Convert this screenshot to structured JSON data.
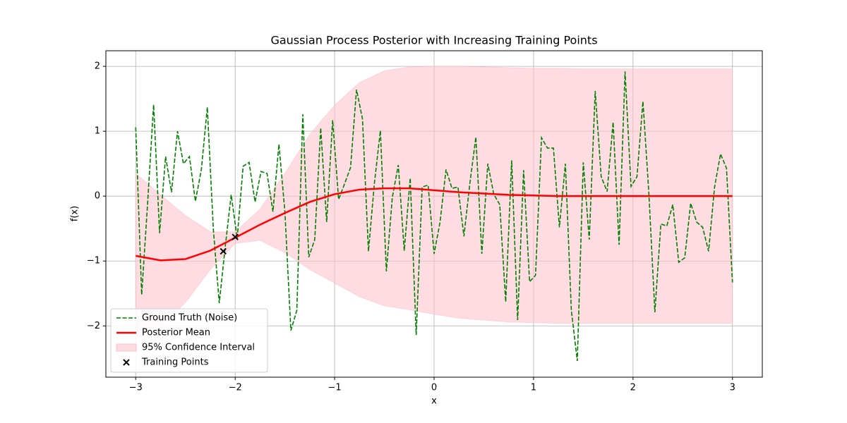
{
  "chart_data": {
    "type": "line",
    "title": "Gaussian Process Posterior with Increasing Training Points",
    "x_label": "x",
    "y_label": "f(x)",
    "xlim": [
      -3.3,
      3.3
    ],
    "ylim": [
      -2.79,
      2.24
    ],
    "xticks": [
      {
        "value": -3,
        "label": "−3"
      },
      {
        "value": -2,
        "label": "−2"
      },
      {
        "value": -1,
        "label": "−1"
      },
      0,
      1,
      2,
      3
    ],
    "yticks": [
      {
        "value": -2,
        "label": "−2"
      },
      {
        "value": -1,
        "label": "−1"
      },
      0,
      1,
      2
    ],
    "grid": true,
    "legend": "lower left",
    "series": [
      {
        "name": "95% Confidence Interval",
        "kind": "band",
        "color": "#ffc0cb",
        "x": [
          -3,
          -2.75,
          -2.5,
          -2.25,
          -2,
          -1.75,
          -1.5,
          -1.25,
          -1,
          -0.75,
          -0.5,
          -0.25,
          0,
          0.25,
          0.5,
          0.75,
          1,
          1.25,
          1.5,
          1.75,
          2,
          2.25,
          2.5,
          2.75,
          3
        ],
        "upper": [
          0.35,
          0.02,
          -0.3,
          -0.55,
          -0.55,
          -0.2,
          0.35,
          0.95,
          1.4,
          1.75,
          1.93,
          1.99,
          2.0,
          2.0,
          1.99,
          1.98,
          1.97,
          1.97,
          1.96,
          1.96,
          1.96,
          1.96,
          1.96,
          1.96,
          1.96
        ],
        "lower": [
          -2.19,
          -2.0,
          -1.64,
          -1.13,
          -0.73,
          -0.68,
          -0.87,
          -1.13,
          -1.34,
          -1.55,
          -1.69,
          -1.75,
          -1.82,
          -1.88,
          -1.91,
          -1.94,
          -1.95,
          -1.96,
          -1.96,
          -1.96,
          -1.96,
          -1.96,
          -1.96,
          -1.96,
          -1.96
        ]
      },
      {
        "name": "Ground Truth (Noise)",
        "kind": "line",
        "style": "dashed",
        "color": "#008000",
        "x": [
          -3,
          -2.94,
          -2.88,
          -2.82,
          -2.76,
          -2.7,
          -2.64,
          -2.58,
          -2.52,
          -2.46,
          -2.4,
          -2.34,
          -2.28,
          -2.22,
          -2.16,
          -2.1,
          -2.04,
          -1.98,
          -1.92,
          -1.86,
          -1.8,
          -1.74,
          -1.68,
          -1.62,
          -1.56,
          -1.5,
          -1.44,
          -1.38,
          -1.32,
          -1.26,
          -1.2,
          -1.14,
          -1.08,
          -1.02,
          -0.96,
          -0.9,
          -0.84,
          -0.78,
          -0.72,
          -0.66,
          -0.6,
          -0.54,
          -0.48,
          -0.42,
          -0.36,
          -0.3,
          -0.24,
          -0.18,
          -0.12,
          -0.06,
          0,
          0.06,
          0.12,
          0.18,
          0.24,
          0.3,
          0.36,
          0.42,
          0.48,
          0.54,
          0.6,
          0.66,
          0.72,
          0.78,
          0.84,
          0.9,
          0.96,
          1.02,
          1.08,
          1.14,
          1.2,
          1.26,
          1.32,
          1.38,
          1.44,
          1.5,
          1.56,
          1.62,
          1.68,
          1.74,
          1.8,
          1.86,
          1.92,
          1.98,
          2.04,
          2.1,
          2.16,
          2.22,
          2.28,
          2.34,
          2.4,
          2.46,
          2.52,
          2.58,
          2.64,
          2.7,
          2.76,
          2.82,
          2.88,
          2.94,
          3
        ],
        "values": [
          1.06,
          -1.52,
          -0.1,
          1.41,
          -0.57,
          0.61,
          0.06,
          1.0,
          0.5,
          0.61,
          -0.08,
          0.41,
          1.37,
          -0.5,
          -1.65,
          -0.78,
          0.02,
          -0.65,
          0.46,
          0.52,
          -0.09,
          0.38,
          0.35,
          -0.24,
          0.8,
          -0.24,
          -2.07,
          -1.76,
          1.26,
          -0.94,
          -0.67,
          1.05,
          -0.4,
          1.17,
          -0.05,
          0.19,
          0.44,
          1.64,
          1.19,
          -0.85,
          0.2,
          1.01,
          -1.16,
          -0.02,
          0.48,
          -0.84,
          0.28,
          -2.14,
          0.14,
          0.17,
          -0.89,
          -0.4,
          0.41,
          0.12,
          0.14,
          -0.62,
          0.2,
          0.91,
          -0.89,
          0.5,
          0.03,
          -0.13,
          -1.63,
          0.55,
          -1.91,
          0.4,
          -1.32,
          -1.22,
          0.9,
          0.74,
          0.74,
          -0.48,
          0.5,
          -1.76,
          -2.54,
          0.52,
          -0.67,
          1.62,
          0.3,
          0.07,
          1.14,
          -0.75,
          1.92,
          0.15,
          0.3,
          1.46,
          0.03,
          -1.79,
          -0.43,
          -0.46,
          -0.13,
          -1.02,
          -0.95,
          -0.11,
          -0.4,
          -0.48,
          -0.85,
          0.14,
          0.65,
          0.43,
          -1.33
        ]
      },
      {
        "name": "Posterior Mean",
        "kind": "line",
        "style": "solid",
        "color": "#ff0000",
        "x": [
          -3,
          -2.75,
          -2.5,
          -2.25,
          -2,
          -1.75,
          -1.5,
          -1.25,
          -1,
          -0.75,
          -0.5,
          -0.25,
          0,
          0.25,
          0.5,
          0.75,
          1,
          1.25,
          1.5,
          1.75,
          2,
          2.25,
          2.5,
          2.75,
          3
        ],
        "values": [
          -0.92,
          -0.99,
          -0.97,
          -0.84,
          -0.64,
          -0.44,
          -0.26,
          -0.09,
          0.03,
          0.1,
          0.12,
          0.12,
          0.09,
          0.06,
          0.04,
          0.02,
          0.01,
          0,
          0,
          0,
          0,
          0,
          0,
          0,
          0
        ]
      },
      {
        "name": "Training Points",
        "kind": "scatter",
        "color": "#000000",
        "x": [
          -2.12,
          -2.0
        ],
        "values": [
          -0.85,
          -0.63
        ]
      }
    ]
  }
}
